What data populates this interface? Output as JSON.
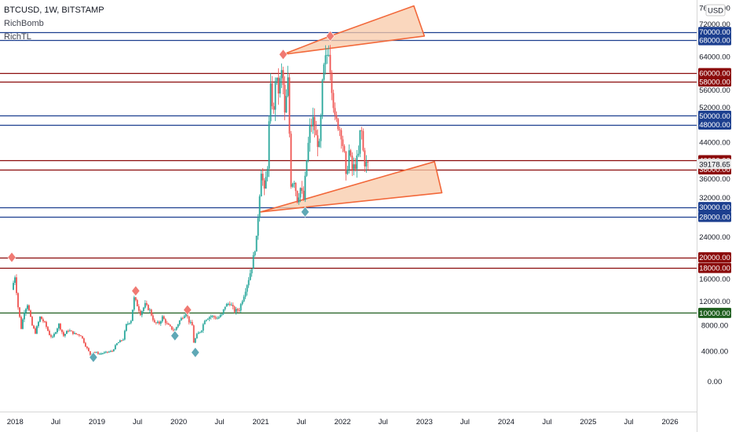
{
  "legend": {
    "symbol": "BTCUSD, 1W, BITSTAMP",
    "indicator1": "RichBomb",
    "indicator2": "RichTL"
  },
  "currency_button": "USD",
  "colors": {
    "blue_level": "#1c3f8f",
    "red_level": "#8b0a0a",
    "green_level": "#1e5e1e",
    "up_candle": "#26a69a",
    "down_candle": "#ef5350",
    "top_marker": "#f07a73",
    "bottom_marker": "#5fa8b6",
    "channel_fill": "#f8c9a8",
    "channel_stroke": "#f2683a",
    "price_tag": "#ebebeb"
  },
  "chart_data": {
    "type": "candlestick",
    "symbol": "BTCUSD",
    "interval": "1W",
    "exchange": "BITSTAMP",
    "y_axis": {
      "ticks": [
        0,
        4000,
        8000,
        12000,
        16000,
        20000,
        24000,
        28000,
        32000,
        36000,
        40000,
        44000,
        48000,
        52000,
        56000,
        60000,
        64000,
        68000,
        72000,
        76000
      ],
      "range": [
        -2500,
        77000
      ],
      "scale": "sqrt-like (power)"
    },
    "x_axis": {
      "ticks": [
        "2018",
        "Jul",
        "2019",
        "Jul",
        "2020",
        "Jul",
        "2021",
        "Jul",
        "2022",
        "Jul",
        "2023",
        "Jul",
        "2024",
        "Jul",
        "2025",
        "Jul",
        "2026"
      ],
      "range": [
        "2017-12-24",
        "2026-04-30"
      ]
    },
    "current_price": "39178.65",
    "levels": [
      {
        "price": 70000,
        "label": "70000.00",
        "color": "blue"
      },
      {
        "price": 68000,
        "label": "68000.00",
        "color": "blue"
      },
      {
        "price": 60000,
        "label": "60000.00",
        "color": "red"
      },
      {
        "price": 58000,
        "label": "58000.00",
        "color": "red"
      },
      {
        "price": 50000,
        "label": "50000.00",
        "color": "blue"
      },
      {
        "price": 48000,
        "label": "48000.00",
        "color": "blue"
      },
      {
        "price": 40000,
        "label": "40000.00",
        "color": "red"
      },
      {
        "price": 38000,
        "label": "38000.00",
        "color": "red"
      },
      {
        "price": 30000,
        "label": "30000.00",
        "color": "blue"
      },
      {
        "price": 28000,
        "label": "28000.00",
        "color": "blue"
      },
      {
        "price": 20000,
        "label": "20000.00",
        "color": "red"
      },
      {
        "price": 18000,
        "label": "18000.00",
        "color": "red"
      },
      {
        "price": 10000,
        "label": "10000.00",
        "color": "green"
      }
    ],
    "price_path": [
      [
        "2017-12-24",
        14000
      ],
      [
        "2018-01-07",
        16500
      ],
      [
        "2018-01-21",
        11000
      ],
      [
        "2018-02-04",
        7500
      ],
      [
        "2018-02-18",
        10300
      ],
      [
        "2018-03-04",
        11500
      ],
      [
        "2018-03-25",
        7900
      ],
      [
        "2018-04-08",
        6800
      ],
      [
        "2018-04-29",
        9300
      ],
      [
        "2018-05-20",
        8300
      ],
      [
        "2018-06-10",
        6500
      ],
      [
        "2018-06-24",
        6000
      ],
      [
        "2018-07-22",
        8100
      ],
      [
        "2018-08-12",
        6300
      ],
      [
        "2018-09-02",
        7200
      ],
      [
        "2018-09-30",
        6600
      ],
      [
        "2018-10-28",
        6400
      ],
      [
        "2018-11-18",
        4800
      ],
      [
        "2018-12-09",
        3500
      ],
      [
        "2018-12-23",
        3900
      ],
      [
        "2019-01-20",
        3600
      ],
      [
        "2019-02-17",
        3800
      ],
      [
        "2019-03-17",
        4000
      ],
      [
        "2019-04-07",
        5100
      ],
      [
        "2019-05-05",
        5800
      ],
      [
        "2019-05-19",
        8000
      ],
      [
        "2019-06-09",
        8800
      ],
      [
        "2019-06-23",
        12500
      ],
      [
        "2019-07-07",
        11300
      ],
      [
        "2019-07-21",
        9900
      ],
      [
        "2019-08-11",
        11400
      ],
      [
        "2019-09-01",
        10400
      ],
      [
        "2019-09-22",
        8300
      ],
      [
        "2019-10-13",
        8300
      ],
      [
        "2019-10-27",
        9300
      ],
      [
        "2019-11-17",
        8100
      ],
      [
        "2019-12-08",
        7400
      ],
      [
        "2019-12-22",
        7200
      ],
      [
        "2020-01-12",
        8700
      ],
      [
        "2020-02-09",
        10100
      ],
      [
        "2020-02-23",
        8600
      ],
      [
        "2020-03-08",
        7900
      ],
      [
        "2020-03-15",
        5300
      ],
      [
        "2020-03-29",
        6400
      ],
      [
        "2020-04-19",
        7300
      ],
      [
        "2020-05-03",
        8900
      ],
      [
        "2020-05-31",
        9500
      ],
      [
        "2020-06-28",
        9100
      ],
      [
        "2020-07-19",
        9700
      ],
      [
        "2020-08-02",
        11200
      ],
      [
        "2020-08-23",
        11700
      ],
      [
        "2020-09-13",
        10300
      ],
      [
        "2020-10-04",
        10600
      ],
      [
        "2020-10-25",
        13100
      ],
      [
        "2020-11-15",
        16000
      ],
      [
        "2020-11-29",
        18200
      ],
      [
        "2020-12-20",
        23500
      ],
      [
        "2021-01-03",
        33000
      ],
      [
        "2021-01-10",
        38000
      ],
      [
        "2021-01-24",
        33000
      ],
      [
        "2021-02-07",
        39000
      ],
      [
        "2021-02-14",
        48000
      ],
      [
        "2021-02-21",
        56000
      ],
      [
        "2021-03-07",
        50500
      ],
      [
        "2021-03-14",
        59000
      ],
      [
        "2021-03-28",
        55800
      ],
      [
        "2021-04-11",
        60000
      ],
      [
        "2021-04-18",
        57000
      ],
      [
        "2021-04-25",
        50000
      ],
      [
        "2021-05-09",
        58000
      ],
      [
        "2021-05-16",
        46000
      ],
      [
        "2021-05-23",
        35000
      ],
      [
        "2021-06-06",
        35800
      ],
      [
        "2021-06-20",
        31600
      ],
      [
        "2021-07-04",
        34000
      ],
      [
        "2021-07-18",
        31500
      ],
      [
        "2021-08-01",
        40000
      ],
      [
        "2021-08-15",
        47000
      ],
      [
        "2021-08-29",
        49000
      ],
      [
        "2021-09-12",
        45000
      ],
      [
        "2021-09-26",
        43000
      ],
      [
        "2021-10-03",
        49000
      ],
      [
        "2021-10-10",
        57000
      ],
      [
        "2021-10-17",
        61000
      ],
      [
        "2021-10-24",
        63000
      ],
      [
        "2021-11-07",
        66000
      ],
      [
        "2021-11-21",
        57000
      ],
      [
        "2021-12-05",
        49000
      ],
      [
        "2021-12-19",
        48000
      ],
      [
        "2022-01-02",
        46000
      ],
      [
        "2022-01-16",
        41000
      ],
      [
        "2022-01-23",
        36000
      ],
      [
        "2022-02-06",
        42000
      ],
      [
        "2022-02-20",
        38000
      ],
      [
        "2022-03-06",
        39000
      ],
      [
        "2022-03-20",
        41000
      ],
      [
        "2022-03-27",
        46000
      ],
      [
        "2022-04-03",
        46300
      ],
      [
        "2022-04-10",
        42000
      ],
      [
        "2022-04-17",
        39500
      ],
      [
        "2022-04-24",
        39178
      ]
    ],
    "top_markers": [
      [
        "2017-12-17",
        20000
      ],
      [
        "2019-06-23",
        13800
      ],
      [
        "2020-02-09",
        10500
      ],
      [
        "2021-04-11",
        64500
      ],
      [
        "2021-11-07",
        69000
      ]
    ],
    "bottom_markers": [
      [
        "2018-12-16",
        3100
      ],
      [
        "2020-03-15",
        3800
      ],
      [
        "2021-07-18",
        29000
      ],
      [
        "2019-12-15",
        6300
      ]
    ],
    "channels": [
      {
        "points": [
          [
            "2021-04-11",
            64500
          ],
          [
            "2021-11-07",
            69000
          ],
          [
            "2022-11-15",
            76500
          ],
          [
            "2023-01-01",
            69000
          ]
        ]
      },
      {
        "points": [
          [
            "2021-01-01",
            29000
          ],
          [
            "2023-02-15",
            39700
          ],
          [
            "2023-03-20",
            33000
          ]
        ]
      }
    ]
  }
}
